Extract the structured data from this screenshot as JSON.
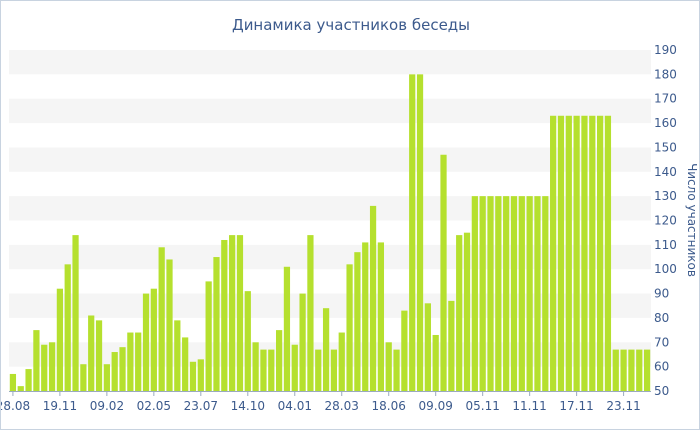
{
  "chart_data": {
    "type": "bar",
    "title": "Динамика участников беседы",
    "ylabel": "Число участников",
    "xlabel": "",
    "ylim": [
      50,
      190
    ],
    "yticks": [
      50,
      60,
      70,
      80,
      90,
      100,
      110,
      120,
      130,
      140,
      150,
      160,
      170,
      180,
      190
    ],
    "grid": "alternating horizontal bands",
    "y_axis_position": "right",
    "bar_color": "#b5e02e",
    "band_color": "#f5f5f5",
    "xtick_labels": [
      {
        "label": "28.08",
        "index": 0
      },
      {
        "label": "19.11",
        "index": 6
      },
      {
        "label": "09.02",
        "index": 12
      },
      {
        "label": "02.05",
        "index": 18
      },
      {
        "label": "23.07",
        "index": 24
      },
      {
        "label": "14.10",
        "index": 30
      },
      {
        "label": "04.01",
        "index": 36
      },
      {
        "label": "28.03",
        "index": 42
      },
      {
        "label": "18.06",
        "index": 48
      },
      {
        "label": "09.09",
        "index": 54
      },
      {
        "label": "05.11",
        "index": 60
      },
      {
        "label": "11.11",
        "index": 66
      },
      {
        "label": "17.11",
        "index": 72
      },
      {
        "label": "23.11",
        "index": 78
      }
    ],
    "values": [
      57,
      52,
      59,
      75,
      69,
      70,
      92,
      102,
      114,
      61,
      81,
      79,
      61,
      66,
      68,
      74,
      74,
      90,
      92,
      109,
      104,
      79,
      72,
      62,
      63,
      95,
      105,
      112,
      114,
      114,
      91,
      70,
      67,
      67,
      75,
      101,
      69,
      90,
      114,
      67,
      84,
      67,
      74,
      102,
      107,
      111,
      126,
      111,
      70,
      67,
      83,
      180,
      180,
      86,
      73,
      147,
      87,
      114,
      115,
      130,
      130,
      130,
      130,
      130,
      130,
      130,
      130,
      130,
      130,
      163,
      163,
      163,
      163,
      163,
      163,
      163,
      163,
      67,
      67,
      67,
      67,
      67
    ]
  }
}
